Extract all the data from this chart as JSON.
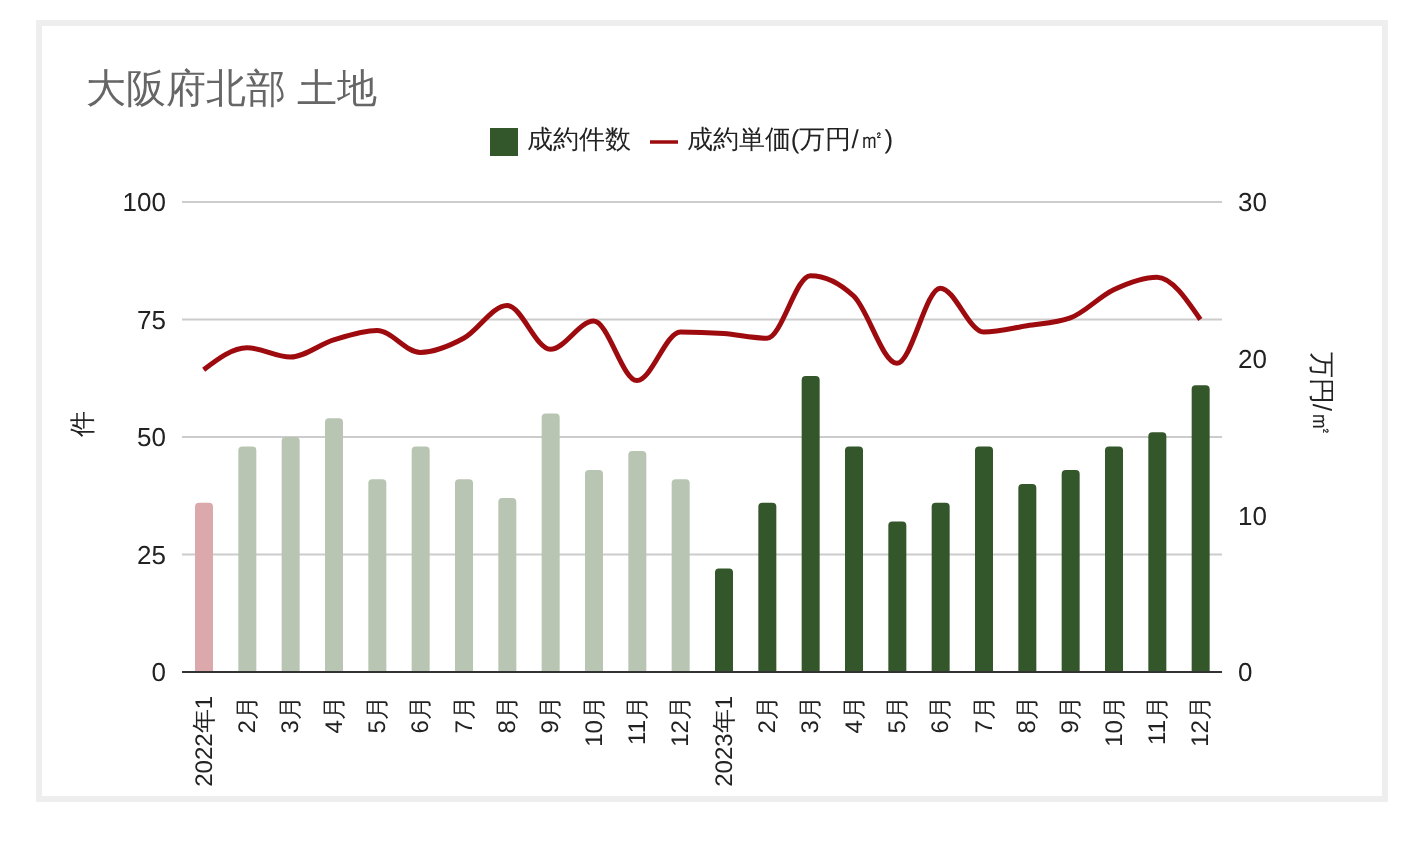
{
  "chart_data": {
    "type": "bar",
    "title": "大阪府北部 土地",
    "ylabel": "件",
    "y2label": "万円/㎡",
    "categories": [
      "2022年1",
      "2月",
      "3月",
      "4月",
      "5月",
      "6月",
      "7月",
      "8月",
      "9月",
      "10月",
      "11月",
      "12月",
      "2023年1",
      "2月",
      "3月",
      "4月",
      "5月",
      "6月",
      "7月",
      "8月",
      "9月",
      "10月",
      "11月",
      "12月"
    ],
    "series": [
      {
        "name": "成約件数",
        "color": "#34562b",
        "colors": [
          "#dba9ab",
          "#b8c5b2",
          "#b8c5b2",
          "#b8c5b2",
          "#b8c5b2",
          "#b8c5b2",
          "#b8c5b2",
          "#b8c5b2",
          "#b8c5b2",
          "#b8c5b2",
          "#b8c5b2",
          "#b8c5b2",
          "#34562b",
          "#34562b",
          "#34562b",
          "#34562b",
          "#34562b",
          "#34562b",
          "#34562b",
          "#34562b",
          "#34562b",
          "#34562b",
          "#34562b",
          "#34562b"
        ],
        "values": [
          36,
          48,
          50,
          54,
          41,
          48,
          41,
          37,
          55,
          43,
          47,
          41,
          22,
          36,
          63,
          48,
          32,
          36,
          48,
          40,
          43,
          48,
          51,
          61
        ]
      },
      {
        "name": "成約単価(万円/㎡)",
        "type": "line",
        "axis": "y2",
        "color": "#9e0b0f",
        "values": [
          19.3,
          20.7,
          20.1,
          21.2,
          21.8,
          20.4,
          21.3,
          23.4,
          20.6,
          22.4,
          18.6,
          21.7,
          21.6,
          21.3,
          25.3,
          24.0,
          19.7,
          24.5,
          21.7,
          22.1,
          22.6,
          24.4,
          25.2,
          22.5
        ]
      }
    ],
    "ylim": [
      0,
      100
    ],
    "yticks": [
      0,
      25,
      50,
      75,
      100
    ],
    "y2lim": [
      0,
      30
    ],
    "y2ticks": [
      0,
      10,
      20,
      30
    ],
    "grid": "y",
    "legend": "top",
    "marker": "none"
  }
}
